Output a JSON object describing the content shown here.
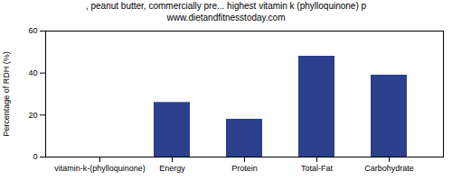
{
  "chart_data": {
    "type": "bar",
    "title": ", peanut butter, commercially pre... highest vitamin k (phylloquinone) p",
    "subtitle": "www.dietandfitnesstoday.com",
    "y_label": "Percentage of RDH (%)",
    "categories": [
      "vitamin-k-(phylloquinone)",
      "Energy",
      "Protein",
      "Total-Fat",
      "Carbohydrate"
    ],
    "values": [
      0,
      26,
      18,
      48,
      39
    ],
    "color": "#2b3f8c",
    "ylim": [
      0,
      60
    ],
    "yticks": [
      0,
      20,
      40,
      60
    ],
    "grid": false
  }
}
